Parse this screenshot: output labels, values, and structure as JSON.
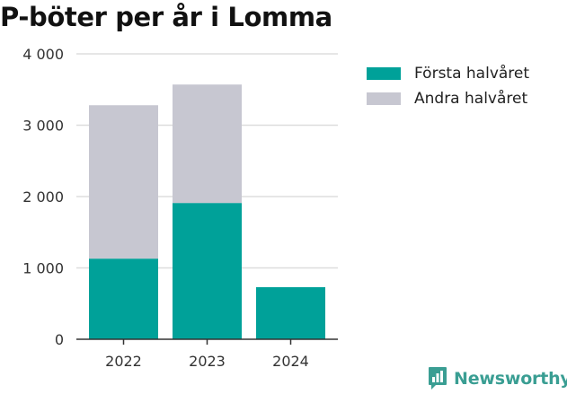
{
  "title": "P-böter per år i Lomma",
  "brand": {
    "name": "Newsworthy",
    "icon": "newsworthy-logo-icon",
    "color": "#3a9e93"
  },
  "colors": {
    "first_half": "#00a199",
    "second_half": "#c7c7d1",
    "grid": "#dddddd",
    "axis": "#333333"
  },
  "chart_data": {
    "type": "bar",
    "stacked": true,
    "title": "P-böter per år i Lomma",
    "categories": [
      "2022",
      "2023",
      "2024"
    ],
    "series": [
      {
        "name": "Första halvåret",
        "values": [
          1130,
          1910,
          730
        ]
      },
      {
        "name": "Andra halvåret",
        "values": [
          2150,
          1660,
          0
        ]
      }
    ],
    "ylim": [
      0,
      4000
    ],
    "yticks": [
      0,
      1000,
      2000,
      3000,
      4000
    ],
    "ytick_labels": [
      "0",
      "1 000",
      "2 000",
      "3 000",
      "4 000"
    ],
    "grid": true,
    "legend_position": "right"
  }
}
